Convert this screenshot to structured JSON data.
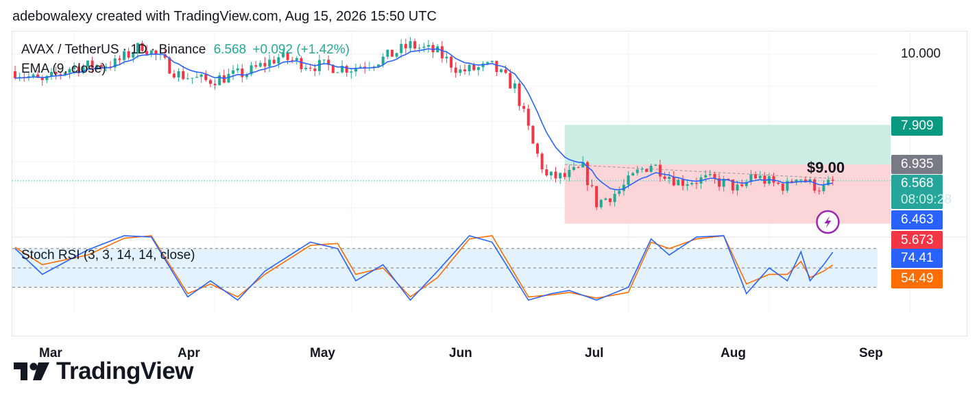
{
  "header": {
    "text": "adebowalexy created with TradingView.com, Aug 15, 2026 15:50 UTC"
  },
  "legend": {
    "symbol": "AVAX / TetherUS · 1D · Binance",
    "price": "6.568",
    "change": "+0.092 (+1.42%)",
    "ema_label": "EMA (9, close)",
    "stoch_label": "Stoch RSI (3, 3, 14, 14, close)"
  },
  "price_axis": {
    "tick_10": "10.000",
    "tag_tp": "7.909",
    "tag_entry": "6.935",
    "tag_last": "6.568",
    "tag_countdown": "08:09:28",
    "tag_ema": "6.463",
    "tag_sl_partial": "5.673"
  },
  "annotation": {
    "level_label": "$9.00"
  },
  "stoch_axis": {
    "k": "74.41",
    "d": "54.49"
  },
  "x_axis": {
    "ticks": [
      "Mar",
      "Apr",
      "May",
      "Jun",
      "Jul",
      "Aug",
      "Sep"
    ]
  },
  "brand": {
    "name": "TradingView"
  },
  "colors": {
    "up": "#22ab94",
    "down": "#f23645",
    "ema": "#2962ff",
    "stoch_k": "#2962ff",
    "stoch_d": "#ff6d00",
    "tp_zone": "#cdece4",
    "sl_zone": "#fbd5d8",
    "tag_tp": "#089981",
    "tag_entry": "#787b86",
    "tag_last": "#26a69a",
    "tag_ema": "#2962ff",
    "tag_sl": "#f23645",
    "stoch_band": "#e3f2fd"
  },
  "chart_data": {
    "type": "candlestick",
    "symbol": "AVAX / TetherUS",
    "interval": "1D",
    "exchange": "Binance",
    "x_range": [
      "2026-02-16",
      "2026-09-05"
    ],
    "y_axis_scale": "log",
    "position": {
      "entry": 6.935,
      "target": 7.909,
      "stop": 5.673
    },
    "anchors": [
      {
        "date": "2026-02-16",
        "close": 9.45
      },
      {
        "date": "2026-02-22",
        "close": 9.1
      },
      {
        "date": "2026-02-28",
        "close": 9.55
      },
      {
        "date": "2026-03-10",
        "close": 9.7
      },
      {
        "date": "2026-03-16",
        "close": 10.3
      },
      {
        "date": "2026-03-24",
        "close": 9.35
      },
      {
        "date": "2026-03-30",
        "close": 9.15
      },
      {
        "date": "2026-04-08",
        "close": 9.4
      },
      {
        "date": "2026-04-15",
        "close": 9.9
      },
      {
        "date": "2026-04-22",
        "close": 9.65
      },
      {
        "date": "2026-05-01",
        "close": 9.55
      },
      {
        "date": "2026-05-08",
        "close": 9.85
      },
      {
        "date": "2026-05-14",
        "close": 10.3
      },
      {
        "date": "2026-05-20",
        "close": 10.05
      },
      {
        "date": "2026-05-25",
        "close": 9.45
      },
      {
        "date": "2026-06-01",
        "close": 9.6
      },
      {
        "date": "2026-06-06",
        "close": 8.95
      },
      {
        "date": "2026-06-10",
        "close": 7.4
      },
      {
        "date": "2026-06-13",
        "close": 6.65
      },
      {
        "date": "2026-06-17",
        "close": 6.65
      },
      {
        "date": "2026-06-21",
        "close": 6.85
      },
      {
        "date": "2026-06-24",
        "close": 6.1
      },
      {
        "date": "2026-06-29",
        "close": 6.35
      },
      {
        "date": "2026-07-03",
        "close": 6.75
      },
      {
        "date": "2026-07-06",
        "close": 6.95
      },
      {
        "date": "2026-07-12",
        "close": 6.55
      },
      {
        "date": "2026-07-18",
        "close": 6.6
      },
      {
        "date": "2026-07-23",
        "close": 6.5
      },
      {
        "date": "2026-07-26",
        "close": 6.35
      },
      {
        "date": "2026-07-28",
        "close": 6.7
      },
      {
        "date": "2026-08-02",
        "close": 6.5
      },
      {
        "date": "2026-08-05",
        "close": 6.45
      },
      {
        "date": "2026-08-07",
        "close": 6.7
      },
      {
        "date": "2026-08-10",
        "close": 6.5
      },
      {
        "date": "2026-08-13",
        "close": 6.4
      },
      {
        "date": "2026-08-15",
        "close": 6.568
      }
    ],
    "stoch_rsi": {
      "k_last": 74.41,
      "d_last": 54.49,
      "bands": [
        80,
        50,
        20
      ],
      "anchors": [
        {
          "date": "2026-02-16",
          "k": 80,
          "d": 82
        },
        {
          "date": "2026-02-22",
          "k": 40,
          "d": 55
        },
        {
          "date": "2026-03-04",
          "k": 78,
          "d": 70
        },
        {
          "date": "2026-03-12",
          "k": 100,
          "d": 96
        },
        {
          "date": "2026-03-18",
          "k": 98,
          "d": 100
        },
        {
          "date": "2026-03-26",
          "k": 5,
          "d": 10
        },
        {
          "date": "2026-03-31",
          "k": 30,
          "d": 25
        },
        {
          "date": "2026-04-06",
          "k": 0,
          "d": 5
        },
        {
          "date": "2026-04-12",
          "k": 45,
          "d": 40
        },
        {
          "date": "2026-04-22",
          "k": 90,
          "d": 85
        },
        {
          "date": "2026-04-28",
          "k": 80,
          "d": 88
        },
        {
          "date": "2026-05-02",
          "k": 30,
          "d": 40
        },
        {
          "date": "2026-05-08",
          "k": 55,
          "d": 50
        },
        {
          "date": "2026-05-14",
          "k": 0,
          "d": 5
        },
        {
          "date": "2026-05-20",
          "k": 45,
          "d": 35
        },
        {
          "date": "2026-05-27",
          "k": 100,
          "d": 95
        },
        {
          "date": "2026-06-01",
          "k": 90,
          "d": 100
        },
        {
          "date": "2026-06-09",
          "k": 0,
          "d": 5
        },
        {
          "date": "2026-06-14",
          "k": 10,
          "d": 8
        },
        {
          "date": "2026-06-18",
          "k": 15,
          "d": 12
        },
        {
          "date": "2026-06-24",
          "k": 0,
          "d": 3
        },
        {
          "date": "2026-07-01",
          "k": 20,
          "d": 12
        },
        {
          "date": "2026-07-06",
          "k": 95,
          "d": 90
        },
        {
          "date": "2026-07-10",
          "k": 70,
          "d": 80
        },
        {
          "date": "2026-07-16",
          "k": 98,
          "d": 95
        },
        {
          "date": "2026-07-22",
          "k": 100,
          "d": 100
        },
        {
          "date": "2026-07-27",
          "k": 10,
          "d": 25
        },
        {
          "date": "2026-08-01",
          "k": 50,
          "d": 40
        },
        {
          "date": "2026-08-05",
          "k": 30,
          "d": 40
        },
        {
          "date": "2026-08-08",
          "k": 75,
          "d": 60
        },
        {
          "date": "2026-08-10",
          "k": 30,
          "d": 35
        },
        {
          "date": "2026-08-13",
          "k": 55,
          "d": 45
        },
        {
          "date": "2026-08-15",
          "k": 74.41,
          "d": 54.49
        }
      ]
    }
  }
}
